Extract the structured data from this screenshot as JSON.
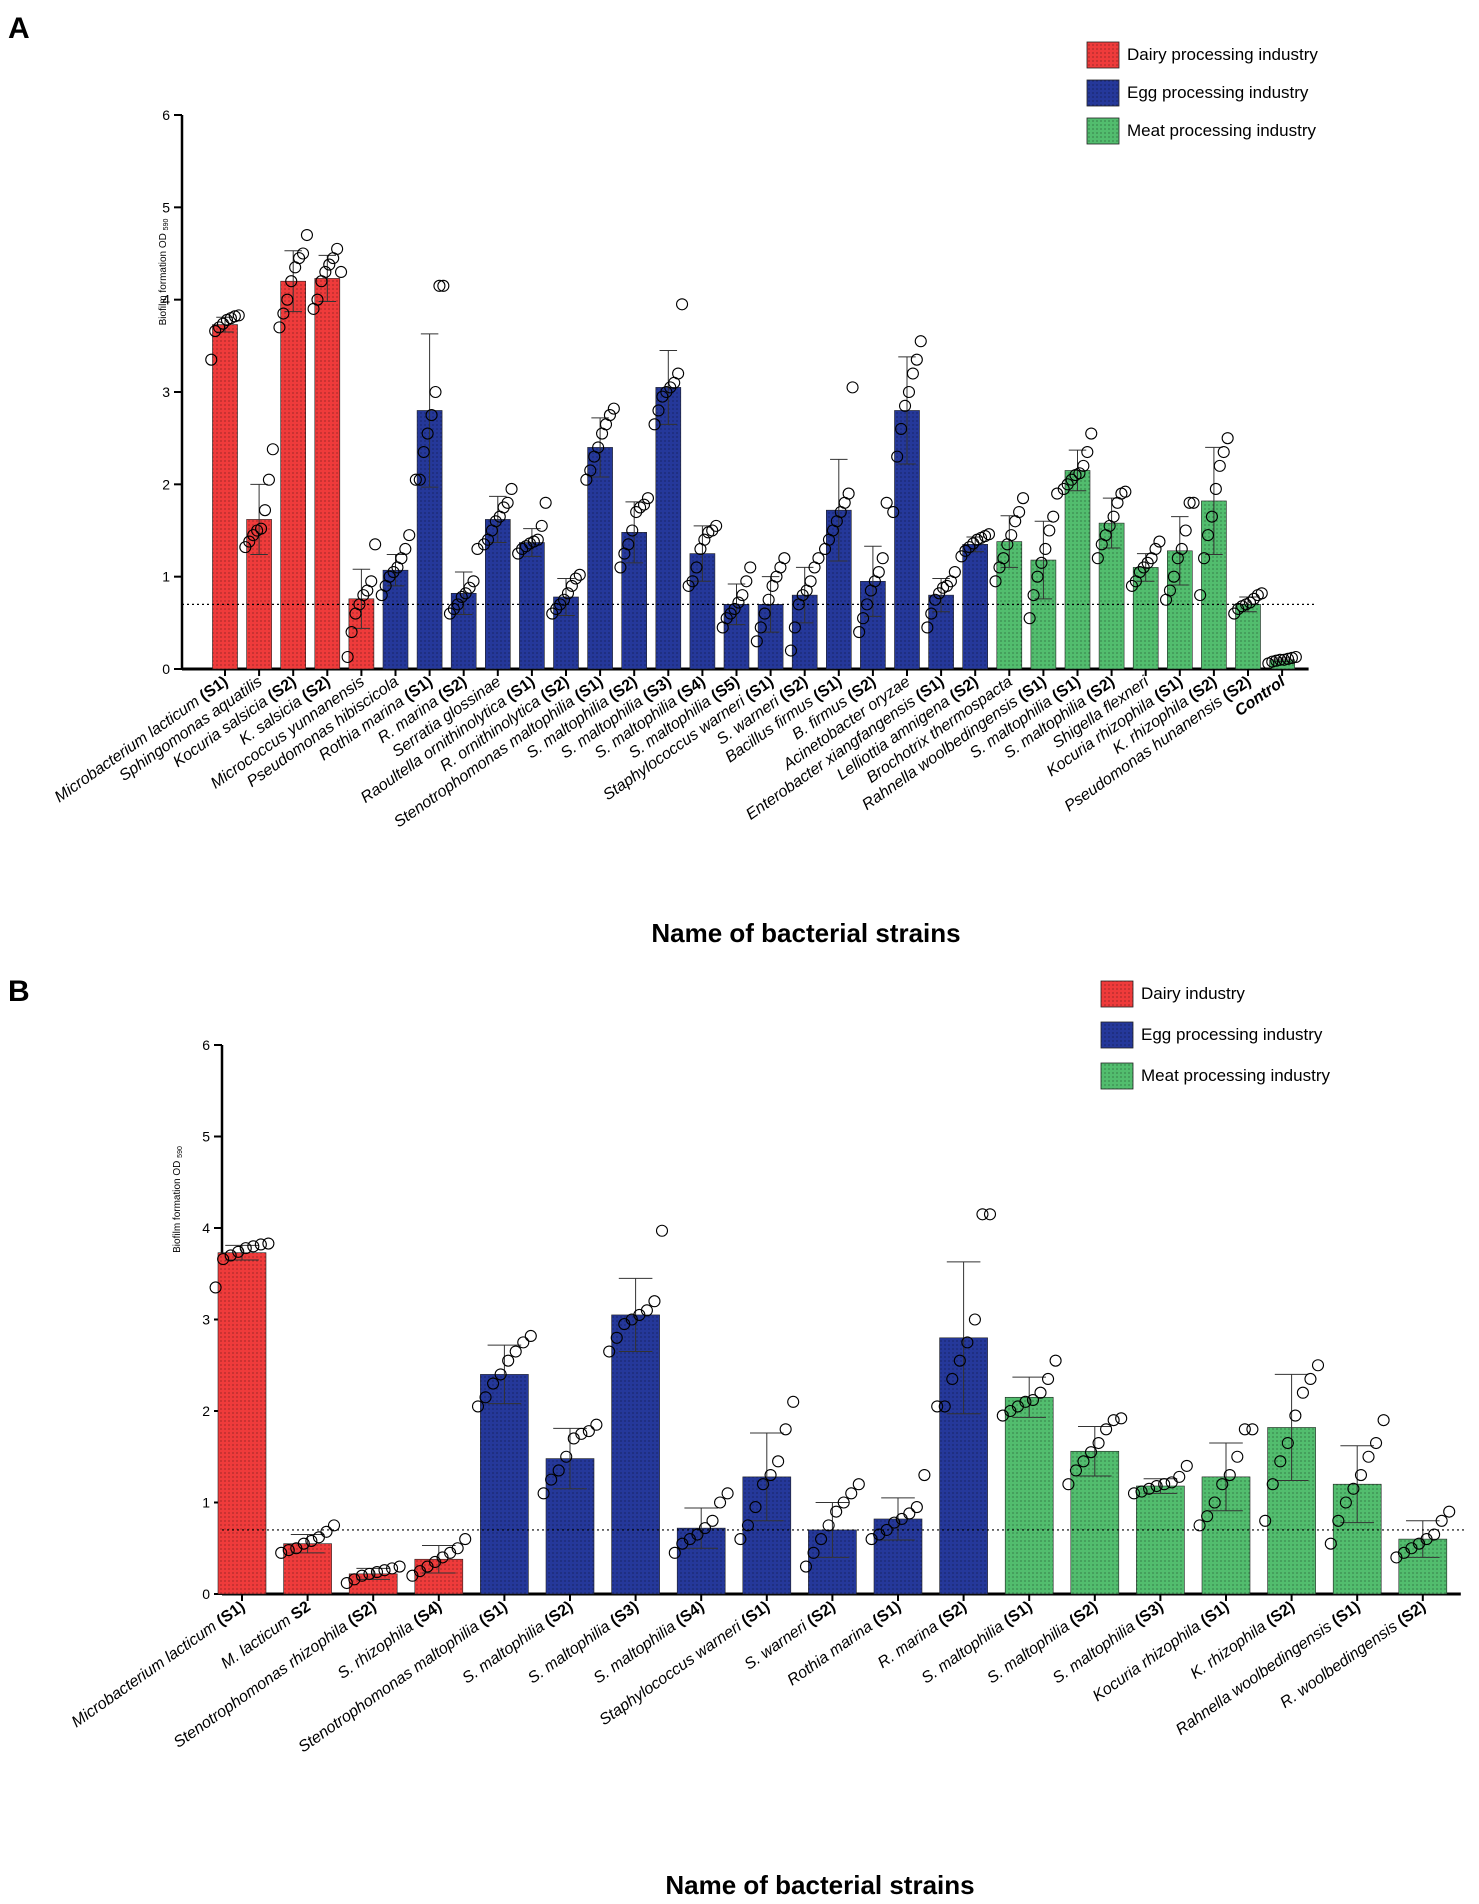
{
  "colors": {
    "dairy": "#ef3b3b",
    "egg": "#25389a",
    "meat": "#52bd6e",
    "control": "#52bd6e"
  },
  "chart_data": [
    {
      "panel": "A",
      "type": "bar",
      "title": "",
      "xlabel": "Name of bacterial strains",
      "ylabel_main": "Biofilm formation OD",
      "ylabel_sub": "590",
      "ylim": [
        0,
        6
      ],
      "yticks": [
        0,
        1,
        2,
        3,
        4,
        5,
        6
      ],
      "threshold": 0.7,
      "legend": [
        {
          "group": "dairy",
          "label": "Dairy processing industry"
        },
        {
          "group": "egg",
          "label": "Egg processing industry"
        },
        {
          "group": "meat",
          "label": "Meat processing industry"
        }
      ],
      "bars": [
        {
          "name": "Microbacterium lacticum ",
          "tag": "(S1)",
          "group": "dairy",
          "value": 3.73,
          "err": 0.08,
          "points": [
            3.35,
            3.66,
            3.7,
            3.74,
            3.78,
            3.8,
            3.82,
            3.83
          ]
        },
        {
          "name": "Sphingomonas aquatilis",
          "tag": "",
          "group": "dairy",
          "value": 1.62,
          "err": 0.38,
          "points": [
            1.32,
            1.38,
            1.45,
            1.5,
            1.52,
            1.72,
            2.05,
            2.38
          ]
        },
        {
          "name": "Kocuria salsicia ",
          "tag": "(S2)",
          "group": "dairy",
          "value": 4.2,
          "err": 0.33,
          "points": [
            3.7,
            3.85,
            4.0,
            4.2,
            4.35,
            4.45,
            4.5,
            4.7
          ]
        },
        {
          "name": "K. salsicia ",
          "tag": "(S2)",
          "group": "dairy",
          "value": 4.23,
          "err": 0.25,
          "points": [
            3.9,
            4.0,
            4.2,
            4.3,
            4.38,
            4.45,
            4.55,
            4.3
          ]
        },
        {
          "name": "Micrococcus yunnanensis",
          "tag": "",
          "group": "dairy",
          "value": 0.76,
          "err": 0.32,
          "points": [
            0.13,
            0.4,
            0.6,
            0.7,
            0.8,
            0.85,
            0.95,
            1.35
          ]
        },
        {
          "name": "Pseudomonas hibiscicola",
          "tag": "",
          "group": "egg",
          "value": 1.07,
          "err": 0.17,
          "points": [
            0.8,
            0.9,
            1.0,
            1.05,
            1.1,
            1.2,
            1.3,
            1.45
          ]
        },
        {
          "name": "Rothia marina ",
          "tag": "(S1)",
          "group": "egg",
          "value": 2.8,
          "err": 0.83,
          "points": [
            2.05,
            2.05,
            2.35,
            2.55,
            2.75,
            3.0,
            4.15,
            4.15
          ]
        },
        {
          "name": "R. marina ",
          "tag": "(S2)",
          "group": "egg",
          "value": 0.82,
          "err": 0.23,
          "points": [
            0.6,
            0.65,
            0.7,
            0.78,
            0.82,
            0.88,
            0.95,
            1.3
          ]
        },
        {
          "name": "Serratia glossinae",
          "tag": "",
          "group": "egg",
          "value": 1.62,
          "err": 0.25,
          "points": [
            1.35,
            1.4,
            1.5,
            1.6,
            1.65,
            1.75,
            1.8,
            1.95
          ]
        },
        {
          "name": "Raoultella ornithinolytica ",
          "tag": "(S1)",
          "group": "egg",
          "value": 1.37,
          "err": 0.15,
          "points": [
            1.25,
            1.3,
            1.33,
            1.36,
            1.38,
            1.4,
            1.55,
            1.8
          ]
        },
        {
          "name": "R. ornithinolytica ",
          "tag": "(S2)",
          "group": "egg",
          "value": 0.78,
          "err": 0.2,
          "points": [
            0.6,
            0.65,
            0.7,
            0.75,
            0.82,
            0.9,
            0.98,
            1.02
          ]
        },
        {
          "name": "Stenotrophomonas maltophilia ",
          "tag": "(S1)",
          "group": "egg",
          "value": 2.4,
          "err": 0.32,
          "points": [
            2.05,
            2.15,
            2.3,
            2.4,
            2.55,
            2.65,
            2.75,
            2.82
          ]
        },
        {
          "name": "S. maltophilia ",
          "tag": "(S2)",
          "group": "egg",
          "value": 1.48,
          "err": 0.33,
          "points": [
            1.1,
            1.25,
            1.35,
            1.5,
            1.7,
            1.75,
            1.78,
            1.85
          ]
        },
        {
          "name": "S. maltophilia ",
          "tag": "(S3)",
          "group": "egg",
          "value": 3.05,
          "err": 0.4,
          "points": [
            2.65,
            2.8,
            2.95,
            3.0,
            3.05,
            3.1,
            3.2,
            3.95
          ]
        },
        {
          "name": "S. maltophilia ",
          "tag": "(S4)",
          "group": "egg",
          "value": 1.25,
          "err": 0.3,
          "points": [
            0.9,
            0.95,
            1.1,
            1.3,
            1.4,
            1.48,
            1.5,
            1.55
          ]
        },
        {
          "name": "S. maltophilia ",
          "tag": "(S5)",
          "group": "egg",
          "value": 0.7,
          "err": 0.22,
          "points": [
            0.45,
            0.55,
            0.6,
            0.65,
            0.72,
            0.8,
            0.95,
            1.1
          ]
        },
        {
          "name": "Staphylococcus warneri ",
          "tag": "(S1)",
          "group": "egg",
          "value": 0.7,
          "err": 0.3,
          "points": [
            0.3,
            0.45,
            0.6,
            0.75,
            0.9,
            1.0,
            1.1,
            1.2
          ]
        },
        {
          "name": "S. warneri ",
          "tag": "(S2)",
          "group": "egg",
          "value": 0.8,
          "err": 0.3,
          "points": [
            0.2,
            0.45,
            0.7,
            0.8,
            0.85,
            0.95,
            1.1,
            1.2
          ]
        },
        {
          "name": "Bacillus firmus ",
          "tag": "(S1)",
          "group": "egg",
          "value": 1.72,
          "err": 0.55,
          "points": [
            1.3,
            1.4,
            1.5,
            1.6,
            1.7,
            1.8,
            1.9,
            3.05
          ]
        },
        {
          "name": "B. firmus ",
          "tag": "(S2)",
          "group": "egg",
          "value": 0.95,
          "err": 0.38,
          "points": [
            0.4,
            0.55,
            0.7,
            0.85,
            0.95,
            1.05,
            1.2,
            1.8
          ]
        },
        {
          "name": "Acinetobacter oryzae",
          "tag": "",
          "group": "egg",
          "value": 2.8,
          "err": 0.58,
          "points": [
            1.7,
            2.3,
            2.6,
            2.85,
            3.0,
            3.2,
            3.35,
            3.55
          ]
        },
        {
          "name": "Enterobacter xiangfangensis ",
          "tag": "(S1)",
          "group": "egg",
          "value": 0.8,
          "err": 0.18,
          "points": [
            0.45,
            0.6,
            0.75,
            0.82,
            0.88,
            0.9,
            0.95,
            1.05
          ]
        },
        {
          "name": "Lelliottia amnigena ",
          "tag": "(S2)",
          "group": "egg",
          "value": 1.35,
          "err": 0.08,
          "points": [
            1.22,
            1.28,
            1.32,
            1.36,
            1.4,
            1.42,
            1.44,
            1.46
          ]
        },
        {
          "name": "Brochotrix thermospacta",
          "tag": "",
          "group": "meat",
          "value": 1.38,
          "err": 0.28,
          "points": [
            0.95,
            1.1,
            1.2,
            1.35,
            1.45,
            1.6,
            1.7,
            1.85
          ]
        },
        {
          "name": "Rahnella woolbedingensis ",
          "tag": "(S1)",
          "group": "meat",
          "value": 1.18,
          "err": 0.42,
          "points": [
            0.55,
            0.8,
            1.0,
            1.15,
            1.3,
            1.5,
            1.65,
            1.9
          ]
        },
        {
          "name": "S. maltophilia ",
          "tag": "(S1)",
          "group": "meat",
          "value": 2.15,
          "err": 0.22,
          "points": [
            1.95,
            2.0,
            2.05,
            2.1,
            2.12,
            2.2,
            2.35,
            2.55
          ]
        },
        {
          "name": "S. maltophilia ",
          "tag": "(S2)",
          "group": "meat",
          "value": 1.58,
          "err": 0.27,
          "points": [
            1.2,
            1.35,
            1.45,
            1.55,
            1.65,
            1.8,
            1.9,
            1.92
          ]
        },
        {
          "name": "Shigella flexneri",
          "tag": "",
          "group": "meat",
          "value": 1.1,
          "err": 0.15,
          "points": [
            0.9,
            0.95,
            1.05,
            1.1,
            1.15,
            1.2,
            1.3,
            1.38
          ]
        },
        {
          "name": "Kocuria rhizophila ",
          "tag": "(S1)",
          "group": "meat",
          "value": 1.28,
          "err": 0.37,
          "points": [
            0.75,
            0.85,
            1.0,
            1.2,
            1.3,
            1.5,
            1.8,
            1.8
          ]
        },
        {
          "name": "K. rhizophila ",
          "tag": "(S2)",
          "group": "meat",
          "value": 1.82,
          "err": 0.58,
          "points": [
            0.8,
            1.2,
            1.45,
            1.65,
            1.95,
            2.2,
            2.35,
            2.5
          ]
        },
        {
          "name": "Pseudomonas hunanensis ",
          "tag": "(S2)",
          "group": "meat",
          "value": 0.7,
          "err": 0.08,
          "points": [
            0.6,
            0.65,
            0.68,
            0.7,
            0.72,
            0.76,
            0.8,
            0.82
          ]
        },
        {
          "name": "",
          "tag": "Control",
          "group": "control",
          "value": 0.1,
          "err": 0.02,
          "points": [
            0.06,
            0.08,
            0.09,
            0.1,
            0.1,
            0.11,
            0.12,
            0.13
          ]
        }
      ]
    },
    {
      "panel": "B",
      "type": "bar",
      "title": "",
      "xlabel": "Name of bacterial strains",
      "ylabel_main": "Biofilm formation OD",
      "ylabel_sub": "590",
      "ylim": [
        0,
        6
      ],
      "yticks": [
        0,
        1,
        2,
        3,
        4,
        5,
        6
      ],
      "threshold": 0.7,
      "legend": [
        {
          "group": "dairy",
          "label": "Dairy industry"
        },
        {
          "group": "egg",
          "label": "Egg processing industry"
        },
        {
          "group": "meat",
          "label": "Meat processing industry"
        }
      ],
      "bars": [
        {
          "name": "Microbacterium lacticum ",
          "tag": "(S1)",
          "group": "dairy",
          "value": 3.73,
          "err": 0.08,
          "points": [
            3.35,
            3.66,
            3.7,
            3.74,
            3.78,
            3.8,
            3.82,
            3.83
          ]
        },
        {
          "name": "M. lacticum ",
          "tag": "S2",
          "group": "dairy",
          "value": 0.55,
          "err": 0.1,
          "points": [
            0.45,
            0.48,
            0.5,
            0.55,
            0.58,
            0.62,
            0.68,
            0.75
          ]
        },
        {
          "name": "Stenotrophomonas rhizophila ",
          "tag": "(S2)",
          "group": "dairy",
          "value": 0.22,
          "err": 0.06,
          "points": [
            0.12,
            0.16,
            0.2,
            0.22,
            0.24,
            0.26,
            0.28,
            0.3
          ]
        },
        {
          "name": "S. rhizophila ",
          "tag": "(S4)",
          "group": "dairy",
          "value": 0.38,
          "err": 0.15,
          "points": [
            0.2,
            0.25,
            0.3,
            0.35,
            0.4,
            0.45,
            0.5,
            0.6
          ]
        },
        {
          "name": "Stenotrophomonas maltophilia ",
          "tag": "(S1)",
          "group": "egg",
          "value": 2.4,
          "err": 0.32,
          "points": [
            2.05,
            2.15,
            2.3,
            2.4,
            2.55,
            2.65,
            2.75,
            2.82
          ]
        },
        {
          "name": "S. maltophilia ",
          "tag": "(S2)",
          "group": "egg",
          "value": 1.48,
          "err": 0.33,
          "points": [
            1.1,
            1.25,
            1.35,
            1.5,
            1.7,
            1.75,
            1.78,
            1.85
          ]
        },
        {
          "name": "S. maltophilia ",
          "tag": "(S3)",
          "group": "egg",
          "value": 3.05,
          "err": 0.4,
          "points": [
            2.65,
            2.8,
            2.95,
            3.0,
            3.05,
            3.1,
            3.2,
            3.97
          ]
        },
        {
          "name": "S. maltophilia ",
          "tag": "(S4)",
          "group": "egg",
          "value": 0.72,
          "err": 0.22,
          "points": [
            0.45,
            0.55,
            0.6,
            0.65,
            0.72,
            0.8,
            1.0,
            1.1
          ]
        },
        {
          "name": "Staphylococcus warneri ",
          "tag": "(S1)",
          "group": "egg",
          "value": 1.28,
          "err": 0.48,
          "points": [
            0.6,
            0.75,
            0.95,
            1.2,
            1.3,
            1.45,
            1.8,
            2.1
          ]
        },
        {
          "name": "S. warneri ",
          "tag": "(S2)",
          "group": "egg",
          "value": 0.7,
          "err": 0.3,
          "points": [
            0.3,
            0.45,
            0.6,
            0.75,
            0.9,
            1.0,
            1.1,
            1.2
          ]
        },
        {
          "name": "Rothia marina ",
          "tag": "(S1)",
          "group": "egg",
          "value": 0.82,
          "err": 0.23,
          "points": [
            0.6,
            0.65,
            0.7,
            0.78,
            0.82,
            0.88,
            0.95,
            1.3
          ]
        },
        {
          "name": "R. marina ",
          "tag": "(S2)",
          "group": "egg",
          "value": 2.8,
          "err": 0.83,
          "points": [
            2.05,
            2.05,
            2.35,
            2.55,
            2.75,
            3.0,
            4.15,
            4.15
          ]
        },
        {
          "name": "S. maltophilia ",
          "tag": "(S1)",
          "group": "meat",
          "value": 2.15,
          "err": 0.22,
          "points": [
            1.95,
            2.0,
            2.05,
            2.1,
            2.12,
            2.2,
            2.35,
            2.55
          ]
        },
        {
          "name": "S. maltophilia ",
          "tag": "(S2)",
          "group": "meat",
          "value": 1.56,
          "err": 0.27,
          "points": [
            1.2,
            1.35,
            1.45,
            1.55,
            1.65,
            1.8,
            1.9,
            1.92
          ]
        },
        {
          "name": "S. maltophilia ",
          "tag": "(S3)",
          "group": "meat",
          "value": 1.18,
          "err": 0.08,
          "points": [
            1.1,
            1.12,
            1.15,
            1.18,
            1.2,
            1.22,
            1.28,
            1.4
          ]
        },
        {
          "name": "Kocuria rhizophila ",
          "tag": "(S1)",
          "group": "meat",
          "value": 1.28,
          "err": 0.37,
          "points": [
            0.75,
            0.85,
            1.0,
            1.2,
            1.3,
            1.5,
            1.8,
            1.8
          ]
        },
        {
          "name": "K. rhizophila ",
          "tag": "(S2)",
          "group": "meat",
          "value": 1.82,
          "err": 0.58,
          "points": [
            0.8,
            1.2,
            1.45,
            1.65,
            1.95,
            2.2,
            2.35,
            2.5
          ]
        },
        {
          "name": "Rahnella woolbedingensis ",
          "tag": "(S1)",
          "group": "meat",
          "value": 1.2,
          "err": 0.42,
          "points": [
            0.55,
            0.8,
            1.0,
            1.15,
            1.3,
            1.5,
            1.65,
            1.9
          ]
        },
        {
          "name": "R. woolbedingensis ",
          "tag": "(S2)",
          "group": "meat",
          "value": 0.6,
          "err": 0.2,
          "points": [
            0.4,
            0.45,
            0.5,
            0.55,
            0.6,
            0.65,
            0.8,
            0.9
          ]
        }
      ]
    }
  ]
}
